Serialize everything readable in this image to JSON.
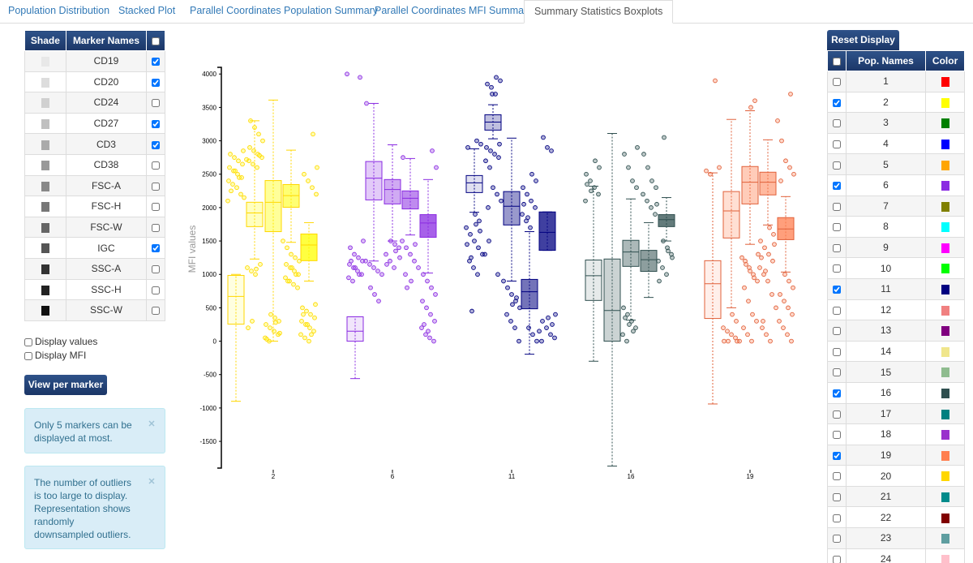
{
  "tabs": {
    "items": [
      "Population Distribution",
      "Stacked Plot",
      "Parallel Coordinates Population Summary",
      "Parallel Coordinates MFI Summary",
      "Summary Statistics Boxplots"
    ],
    "active": 4
  },
  "marker_table": {
    "headers": [
      "Shade",
      "Marker Names"
    ],
    "rows": [
      {
        "name": "CD19",
        "shade": "#e8e8e8",
        "checked": true
      },
      {
        "name": "CD20",
        "shade": "#dddddd",
        "checked": true
      },
      {
        "name": "CD24",
        "shade": "#d0d0d0",
        "checked": false
      },
      {
        "name": "CD27",
        "shade": "#c0c0c0",
        "checked": true
      },
      {
        "name": "CD3",
        "shade": "#aaaaaa",
        "checked": true
      },
      {
        "name": "CD38",
        "shade": "#999999",
        "checked": false
      },
      {
        "name": "FSC-A",
        "shade": "#888888",
        "checked": false
      },
      {
        "name": "FSC-H",
        "shade": "#777777",
        "checked": false
      },
      {
        "name": "FSC-W",
        "shade": "#666666",
        "checked": false
      },
      {
        "name": "IGC",
        "shade": "#555555",
        "checked": true
      },
      {
        "name": "SSC-A",
        "shade": "#333333",
        "checked": false
      },
      {
        "name": "SSC-H",
        "shade": "#222222",
        "checked": false
      },
      {
        "name": "SSC-W",
        "shade": "#111111",
        "checked": false
      }
    ]
  },
  "options": [
    "Display values",
    "Display MFI"
  ],
  "view_button": "View per marker",
  "alerts": [
    "Only 5 markers can be displayed at most.",
    "The number of outliers is too large to display. Representation shows randomly downsampled outliers."
  ],
  "reset_button": "Reset Display",
  "pop_table": {
    "headers": [
      "Pop. Names",
      "Color"
    ],
    "rows": [
      {
        "name": "1",
        "color": "#ff0000",
        "checked": false
      },
      {
        "name": "2",
        "color": "#ffff00",
        "checked": true
      },
      {
        "name": "3",
        "color": "#008000",
        "checked": false
      },
      {
        "name": "4",
        "color": "#0000ff",
        "checked": false
      },
      {
        "name": "5",
        "color": "#ffa500",
        "checked": false
      },
      {
        "name": "6",
        "color": "#8a2be2",
        "checked": true
      },
      {
        "name": "7",
        "color": "#808000",
        "checked": false
      },
      {
        "name": "8",
        "color": "#00ffff",
        "checked": false
      },
      {
        "name": "9",
        "color": "#ff00ff",
        "checked": false
      },
      {
        "name": "10",
        "color": "#00ff00",
        "checked": false
      },
      {
        "name": "11",
        "color": "#000080",
        "checked": true
      },
      {
        "name": "12",
        "color": "#f08080",
        "checked": false
      },
      {
        "name": "13",
        "color": "#800080",
        "checked": false
      },
      {
        "name": "14",
        "color": "#f0e68c",
        "checked": false
      },
      {
        "name": "15",
        "color": "#8fbc8f",
        "checked": false
      },
      {
        "name": "16",
        "color": "#2f4f4f",
        "checked": true
      },
      {
        "name": "17",
        "color": "#008080",
        "checked": false
      },
      {
        "name": "18",
        "color": "#9932cc",
        "checked": false
      },
      {
        "name": "19",
        "color": "#ff7f50",
        "checked": true
      },
      {
        "name": "20",
        "color": "#ffd700",
        "checked": false
      },
      {
        "name": "21",
        "color": "#008b8b",
        "checked": false
      },
      {
        "name": "22",
        "color": "#800000",
        "checked": false
      },
      {
        "name": "23",
        "color": "#5f9ea0",
        "checked": false
      },
      {
        "name": "24",
        "color": "#ffc0cb",
        "checked": false
      }
    ]
  },
  "chart_data": {
    "type": "boxplot",
    "y_label": "MFI values",
    "ylim": [
      -1900,
      4100
    ],
    "yticks": [
      4000,
      3500,
      3000,
      2500,
      2000,
      1500,
      1000,
      500,
      0,
      -500,
      -1000,
      -1500
    ],
    "categories": [
      "2",
      "6",
      "11",
      "16",
      "19"
    ],
    "series": [
      {
        "color": "#ffff00",
        "stroke": "#ffd700",
        "boxes": [
          {
            "low": -900,
            "q1": 255,
            "median": 670,
            "q3": 985,
            "high": 1000,
            "outliers": [
              2100,
              2200,
              2300,
              2350,
              2400,
              2450,
              2500,
              2550,
              2600,
              2650,
              2700,
              2750,
              2800,
              2850,
              2450,
              2550,
              2250,
              2150
            ]
          },
          {
            "low": 1230,
            "q1": 1715,
            "median": 1920,
            "q3": 2080,
            "high": 3300,
            "outliers": [
              2600,
              2650,
              2700,
              2750,
              2800,
              2850,
              2900,
              3000,
              3100,
              3200,
              3300,
              2720,
              2780,
              1000,
              1050,
              1100,
              1150,
              1080,
              300,
              200
            ]
          },
          {
            "low": 0,
            "q1": 1640,
            "median": 2080,
            "q3": 2405,
            "high": 3610,
            "outliers": [
              0,
              50,
              100,
              150,
              200,
              250,
              300,
              350,
              400,
              30,
              120,
              280
            ]
          },
          {
            "low": 1480,
            "q1": 2005,
            "median": 2180,
            "q3": 2345,
            "high": 2860,
            "outliers": [
              800,
              850,
              900,
              950,
              1000,
              1050,
              1100,
              1150,
              1200,
              1250,
              1300,
              1400,
              1500,
              1000,
              1100,
              900
            ]
          },
          {
            "low": 900,
            "q1": 1205,
            "median": 1440,
            "q3": 1605,
            "high": 1775,
            "outliers": [
              0,
              50,
              100,
              150,
              200,
              250,
              300,
              350,
              400,
              450,
              500,
              550,
              100,
              250,
              400,
              2200,
              2300,
              2400,
              2500,
              2600,
              3100
            ]
          }
        ]
      },
      {
        "color": "#8a2be2",
        "stroke": "#8a2be2",
        "boxes": [
          {
            "low": -560,
            "q1": 0,
            "median": 150,
            "q3": 365,
            "high": 365,
            "outliers": [
              900,
              950,
              1000,
              1050,
              1100,
              1150,
              1200,
              1250,
              1300,
              1400,
              1500,
              1000,
              1100,
              1200,
              4000,
              3950
            ]
          },
          {
            "low": 1200,
            "q1": 2115,
            "median": 2440,
            "q3": 2690,
            "high": 3560,
            "outliers": [
              1000,
              1050,
              1100,
              1150,
              1200,
              600,
              700,
              800,
              3560
            ]
          },
          {
            "low": 1500,
            "q1": 2055,
            "median": 2270,
            "q3": 2420,
            "high": 2940,
            "outliers": [
              1100,
              1200,
              1300,
              1400,
              1450,
              1500,
              1150,
              1250,
              1350
            ]
          },
          {
            "low": 1590,
            "q1": 1980,
            "median": 2140,
            "q3": 2250,
            "high": 2735,
            "outliers": [
              1000,
              1100,
              1200,
              1300,
              1400,
              1500,
              1450,
              900,
              800,
              2750
            ]
          },
          {
            "low": 1020,
            "q1": 1555,
            "median": 1770,
            "q3": 1895,
            "high": 2420,
            "outliers": [
              0,
              50,
              100,
              200,
              300,
              400,
              500,
              600,
              700,
              800,
              900,
              1000,
              2600,
              2850,
              150,
              250
            ]
          }
        ]
      },
      {
        "color": "#000080",
        "stroke": "#000080",
        "boxes": [
          {
            "low": 1930,
            "q1": 2225,
            "median": 2370,
            "q3": 2480,
            "high": 2880,
            "outliers": [
              1000,
              1100,
              1200,
              1300,
              1400,
              1500,
              1600,
              1700,
              1800,
              1900,
              1250,
              1450,
              1650,
              1750,
              450,
              2900,
              2950,
              3000
            ]
          },
          {
            "low": 3030,
            "q1": 3160,
            "median": 3280,
            "q3": 3390,
            "high": 3540,
            "outliers": [
              2600,
              2700,
              2750,
              2800,
              2850,
              2900,
              2950,
              3700,
              3800,
              3850,
              3900,
              3950,
              3700,
              2000,
              2100,
              2200,
              2300,
              1500,
              1300,
              1000
            ]
          },
          {
            "low": 900,
            "q1": 1740,
            "median": 2020,
            "q3": 2240,
            "high": 3040,
            "outliers": [
              0,
              200,
              300,
              400,
              500,
              600,
              700,
              800,
              900,
              650,
              550
            ]
          },
          {
            "low": -195,
            "q1": 485,
            "median": 740,
            "q3": 925,
            "high": 1640,
            "outliers": [
              1700,
              1800,
              1900,
              2000,
              2100,
              2200,
              2300,
              2400,
              2500,
              1850,
              2050,
              0,
              100,
              200
            ]
          },
          {
            "low": 1360,
            "q1": 1360,
            "median": 1630,
            "q3": 1935,
            "high": 1935,
            "outliers": [
              0,
              50,
              100,
              200,
              300,
              400,
              2850,
              2900,
              3050,
              150,
              250,
              350
            ]
          }
        ]
      },
      {
        "color": "#2f4f4f",
        "stroke": "#2f4f4f",
        "boxes": [
          {
            "low": -300,
            "q1": 610,
            "median": 980,
            "q3": 1215,
            "high": 2320,
            "outliers": [
              2100,
              2200,
              2300,
              2400,
              2500,
              2600,
              2700,
              2250,
              2350
            ]
          },
          {
            "low": -1870,
            "q1": 0,
            "median": 460,
            "q3": 1230,
            "high": 3110,
            "outliers": []
          },
          {
            "low": 315,
            "q1": 1120,
            "median": 1335,
            "q3": 1510,
            "high": 2130,
            "outliers": [
              0,
              100,
              200,
              300,
              400,
              500,
              2300,
              2400,
              2600,
              2800,
              2900,
              150,
              250,
              350
            ]
          },
          {
            "low": 655,
            "q1": 1045,
            "median": 1220,
            "q3": 1360,
            "high": 1775,
            "outliers": [
              1900,
              2000,
              2100,
              2200,
              2300,
              2400,
              2600,
              2800,
              2050
            ]
          },
          {
            "low": 1500,
            "q1": 1715,
            "median": 1820,
            "q3": 1895,
            "high": 2150,
            "outliers": [
              1000,
              1100,
              1200,
              1300,
              1400,
              1500,
              900,
              1250,
              1350,
              3050
            ]
          }
        ]
      },
      {
        "color": "#ff7f50",
        "stroke": "#e0603a",
        "boxes": [
          {
            "low": -940,
            "q1": 340,
            "median": 860,
            "q3": 1205,
            "high": 2520,
            "outliers": [
              2500,
              2550,
              2600,
              3900
            ]
          },
          {
            "low": 500,
            "q1": 1545,
            "median": 1950,
            "q3": 2240,
            "high": 3320,
            "outliers": [
              0,
              50,
              100,
              150,
              200,
              300,
              400,
              0,
              0,
              0
            ]
          },
          {
            "low": 1450,
            "q1": 2055,
            "median": 2380,
            "q3": 2615,
            "high": 3450,
            "outliers": [
              0,
              100,
              200,
              300,
              400,
              600,
              800,
              900,
              1000,
              1100,
              1200,
              1300,
              950,
              1050,
              1150,
              1250,
              3600,
              3500
            ]
          },
          {
            "low": 1740,
            "q1": 2190,
            "median": 2380,
            "q3": 2530,
            "high": 3015,
            "outliers": [
              300,
              500,
              700,
              900,
              1000,
              1100,
              1200,
              1300,
              1400,
              1500,
              1600,
              1700,
              1050,
              1250,
              1450,
              0,
              100,
              200
            ]
          },
          {
            "low": 1035,
            "q1": 1520,
            "median": 1680,
            "q3": 1850,
            "high": 2165,
            "outliers": [
              0,
              100,
              200,
              300,
              400,
              500,
              600,
              700,
              800,
              900,
              1000,
              2400,
              2500,
              2600,
              2700,
              3000,
              3300,
              3700
            ]
          }
        ]
      }
    ]
  }
}
